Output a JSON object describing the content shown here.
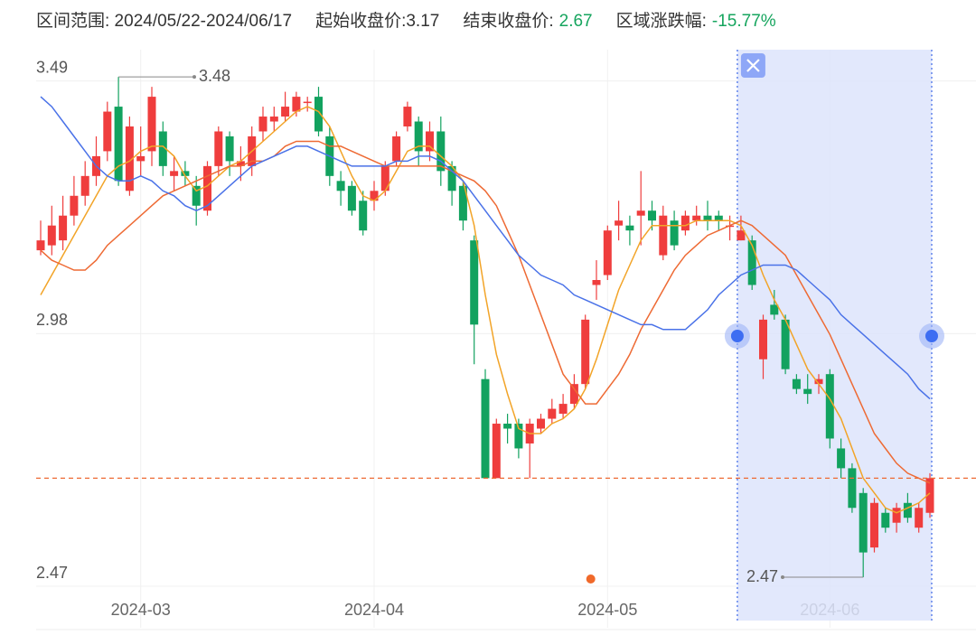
{
  "header": {
    "range_label": "区间范围: 2024/05/22-2024/06/17",
    "start_label": "起始收盘价:3.17",
    "end_label": "结束收盘价:",
    "end_value": "2.67",
    "change_label": "区域涨跌幅:",
    "change_value": "-15.77%"
  },
  "chart_data": {
    "type": "candlestick",
    "categories": [
      null,
      null,
      null,
      null,
      null,
      null,
      null,
      null,
      null,
      "2024-03",
      null,
      null,
      null,
      null,
      null,
      null,
      null,
      null,
      null,
      null,
      null,
      null,
      null,
      null,
      null,
      null,
      null,
      null,
      null,
      null,
      "2024-04",
      null,
      null,
      null,
      null,
      null,
      null,
      null,
      null,
      null,
      null,
      null,
      null,
      null,
      null,
      null,
      null,
      null,
      null,
      null,
      null,
      "2024-05",
      null,
      null,
      null,
      null,
      null,
      null,
      null,
      null,
      null,
      null,
      null,
      null,
      null,
      null,
      null,
      null,
      null,
      null,
      null,
      "2024-06",
      null,
      null,
      null,
      null,
      null,
      null,
      null,
      null,
      null
    ],
    "open": [
      3.13,
      3.14,
      3.15,
      3.2,
      3.24,
      3.28,
      3.33,
      3.42,
      3.25,
      3.31,
      3.33,
      3.37,
      3.28,
      3.29,
      3.26,
      3.21,
      3.3,
      3.36,
      3.3,
      3.3,
      3.37,
      3.39,
      3.4,
      3.41,
      3.43,
      3.44,
      3.36,
      3.27,
      3.26,
      3.23,
      3.23,
      3.25,
      3.31,
      3.38,
      3.39,
      3.33,
      3.37,
      3.3,
      3.26,
      3.15,
      2.87,
      2.67,
      2.78,
      2.78,
      2.74,
      2.77,
      2.79,
      2.8,
      2.82,
      2.86,
      3.06,
      3.08,
      3.18,
      3.18,
      3.2,
      3.21,
      3.12,
      3.19,
      3.17,
      3.19,
      3.2,
      3.2,
      3.18,
      3.15,
      3.15,
      2.91,
      3.02,
      2.99,
      2.87,
      2.85,
      2.86,
      2.88,
      2.73,
      2.69,
      2.64,
      2.53,
      2.6,
      2.58,
      2.62,
      2.57,
      2.6
    ],
    "high": [
      3.19,
      3.22,
      3.24,
      3.28,
      3.31,
      3.36,
      3.43,
      3.48,
      3.4,
      3.38,
      3.46,
      3.39,
      3.32,
      3.31,
      3.28,
      3.31,
      3.38,
      3.37,
      3.34,
      3.38,
      3.42,
      3.42,
      3.45,
      3.45,
      3.44,
      3.46,
      3.38,
      3.29,
      3.27,
      3.25,
      3.27,
      3.31,
      3.37,
      3.43,
      3.4,
      3.39,
      3.4,
      3.31,
      3.27,
      3.16,
      2.89,
      2.79,
      2.8,
      2.79,
      2.79,
      2.8,
      2.83,
      2.84,
      2.88,
      3.0,
      3.11,
      3.18,
      3.23,
      3.2,
      3.29,
      3.23,
      3.22,
      3.21,
      3.21,
      3.22,
      3.23,
      3.21,
      3.2,
      3.2,
      3.16,
      3.0,
      3.05,
      3.0,
      2.88,
      2.88,
      2.88,
      2.89,
      2.75,
      2.7,
      2.65,
      2.63,
      2.61,
      2.62,
      2.64,
      2.62,
      2.68
    ],
    "low": [
      3.12,
      3.12,
      3.13,
      3.18,
      3.22,
      3.26,
      3.31,
      3.26,
      3.24,
      3.28,
      3.3,
      3.28,
      3.25,
      3.26,
      3.18,
      3.2,
      3.28,
      3.28,
      3.27,
      3.28,
      3.35,
      3.37,
      3.39,
      3.4,
      3.41,
      3.36,
      3.26,
      3.22,
      3.2,
      3.16,
      3.21,
      3.24,
      3.3,
      3.37,
      3.3,
      3.31,
      3.26,
      3.22,
      3.17,
      2.9,
      2.67,
      2.67,
      2.74,
      2.71,
      2.67,
      2.76,
      2.78,
      2.79,
      2.81,
      2.85,
      3.03,
      3.07,
      3.15,
      3.14,
      3.14,
      3.17,
      3.11,
      3.13,
      3.16,
      3.18,
      3.17,
      3.17,
      3.15,
      3.15,
      3.05,
      2.87,
      2.99,
      2.88,
      2.84,
      2.82,
      2.84,
      2.73,
      2.67,
      2.6,
      2.47,
      2.52,
      2.56,
      2.56,
      2.58,
      2.56,
      2.59
    ],
    "close": [
      3.15,
      3.18,
      3.2,
      3.24,
      3.28,
      3.32,
      3.41,
      3.27,
      3.38,
      3.32,
      3.44,
      3.3,
      3.29,
      3.28,
      3.22,
      3.3,
      3.37,
      3.31,
      3.31,
      3.36,
      3.4,
      3.4,
      3.42,
      3.44,
      3.43,
      3.37,
      3.28,
      3.25,
      3.21,
      3.17,
      3.25,
      3.3,
      3.36,
      3.42,
      3.33,
      3.37,
      3.29,
      3.25,
      3.19,
      2.98,
      2.67,
      2.78,
      2.77,
      2.73,
      2.78,
      2.79,
      2.81,
      2.82,
      2.86,
      2.99,
      3.07,
      3.17,
      3.19,
      3.17,
      3.21,
      3.19,
      3.2,
      3.14,
      3.2,
      3.2,
      3.19,
      3.19,
      3.18,
      3.17,
      3.06,
      2.99,
      3.0,
      2.89,
      2.85,
      2.84,
      2.87,
      2.75,
      2.69,
      2.61,
      2.52,
      2.62,
      2.57,
      2.61,
      2.59,
      2.61,
      2.67
    ],
    "up_color": "#ef3d3d",
    "down_color": "#12a25f",
    "series": [
      {
        "color": "#f2a428",
        "values": [
          3.04,
          3.08,
          3.12,
          3.16,
          3.2,
          3.24,
          3.28,
          3.3,
          3.31,
          3.33,
          3.34,
          3.34,
          3.32,
          3.28,
          3.25,
          3.26,
          3.28,
          3.3,
          3.31,
          3.33,
          3.35,
          3.37,
          3.39,
          3.41,
          3.42,
          3.41,
          3.38,
          3.33,
          3.28,
          3.24,
          3.23,
          3.25,
          3.29,
          3.33,
          3.34,
          3.34,
          3.32,
          3.3,
          3.27,
          3.18,
          3.04,
          2.92,
          2.84,
          2.77,
          2.76,
          2.76,
          2.78,
          2.79,
          2.81,
          2.85,
          2.91,
          2.98,
          3.05,
          3.1,
          3.15,
          3.18,
          3.18,
          3.18,
          3.18,
          3.19,
          3.19,
          3.19,
          3.19,
          3.18,
          3.14,
          3.08,
          3.03,
          2.99,
          2.94,
          2.89,
          2.86,
          2.83,
          2.79,
          2.73,
          2.67,
          2.64,
          2.61,
          2.6,
          2.61,
          2.62,
          2.64
        ]
      },
      {
        "color": "#ee6a34",
        "values": [
          3.13,
          3.11,
          3.1,
          3.09,
          3.09,
          3.11,
          3.14,
          3.16,
          3.18,
          3.2,
          3.22,
          3.24,
          3.25,
          3.26,
          3.27,
          3.28,
          3.29,
          3.3,
          3.3,
          3.31,
          3.31,
          3.32,
          3.34,
          3.35,
          3.35,
          3.35,
          3.34,
          3.34,
          3.33,
          3.32,
          3.31,
          3.3,
          3.3,
          3.3,
          3.3,
          3.3,
          3.3,
          3.29,
          3.28,
          3.27,
          3.25,
          3.22,
          3.17,
          3.12,
          3.06,
          3.0,
          2.94,
          2.88,
          2.85,
          2.82,
          2.82,
          2.85,
          2.88,
          2.92,
          2.97,
          3.01,
          3.05,
          3.09,
          3.12,
          3.14,
          3.16,
          3.17,
          3.18,
          3.19,
          3.18,
          3.16,
          3.14,
          3.12,
          3.08,
          3.04,
          3.0,
          2.96,
          2.91,
          2.86,
          2.81,
          2.76,
          2.73,
          2.7,
          2.68,
          2.67,
          2.66
        ]
      },
      {
        "color": "#4a72e8",
        "values": [
          3.44,
          3.42,
          3.39,
          3.36,
          3.33,
          3.3,
          3.28,
          3.27,
          3.27,
          3.28,
          3.27,
          3.25,
          3.24,
          3.22,
          3.21,
          3.22,
          3.24,
          3.26,
          3.28,
          3.3,
          3.31,
          3.32,
          3.33,
          3.34,
          3.34,
          3.33,
          3.32,
          3.31,
          3.3,
          3.3,
          3.3,
          3.3,
          3.31,
          3.31,
          3.32,
          3.32,
          3.31,
          3.29,
          3.27,
          3.24,
          3.21,
          3.18,
          3.15,
          3.12,
          3.1,
          3.08,
          3.07,
          3.06,
          3.04,
          3.03,
          3.02,
          3.01,
          3.0,
          2.99,
          2.98,
          2.98,
          2.97,
          2.97,
          2.97,
          2.99,
          3.01,
          3.04,
          3.06,
          3.08,
          3.09,
          3.1,
          3.1,
          3.1,
          3.09,
          3.07,
          3.05,
          3.03,
          3.0,
          2.98,
          2.96,
          2.94,
          2.92,
          2.9,
          2.88,
          2.85,
          2.83
        ]
      }
    ],
    "ylim": [
      2.45,
      3.535
    ],
    "yticks": [
      3.49,
      2.98,
      2.47
    ],
    "grid": true,
    "max_label": 3.48,
    "min_label": 2.47,
    "highlight": {
      "start_index": 63,
      "end_index": 80,
      "color": "#dde4fb"
    },
    "event_markers": [
      49
    ]
  }
}
